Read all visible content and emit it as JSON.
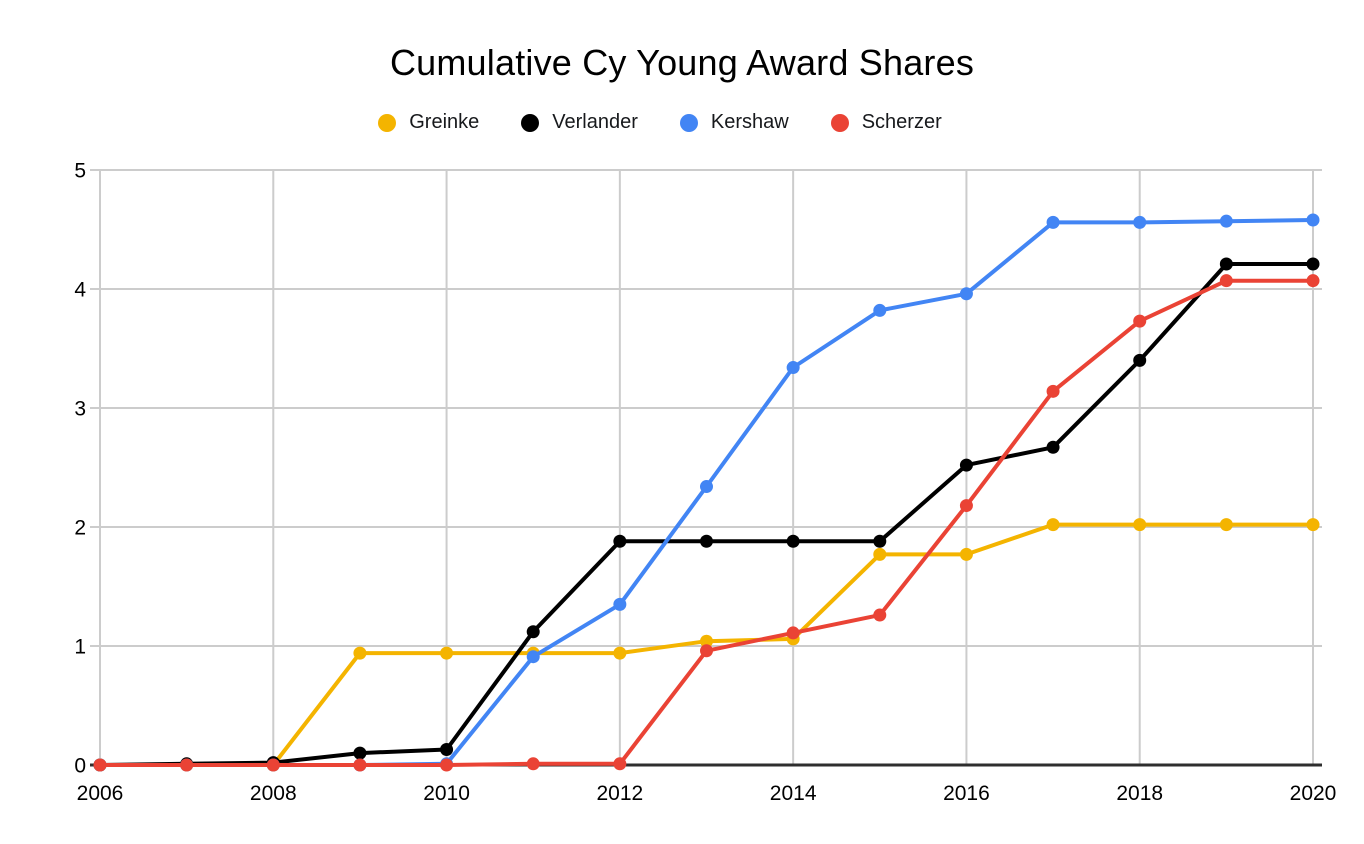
{
  "chart_data": {
    "type": "line",
    "title": "Cumulative Cy Young Award Shares",
    "xlabel": "",
    "ylabel": "",
    "years": [
      2006,
      2007,
      2008,
      2009,
      2010,
      2011,
      2012,
      2013,
      2014,
      2015,
      2016,
      2017,
      2018,
      2019,
      2020
    ],
    "x_ticks": [
      2006,
      2008,
      2010,
      2012,
      2014,
      2016,
      2018,
      2020
    ],
    "y_ticks": [
      0,
      1,
      2,
      3,
      4,
      5
    ],
    "ylim": [
      0,
      5
    ],
    "grid": true,
    "legend_position": "top",
    "series": [
      {
        "name": "Greinke",
        "color": "#F4B400",
        "values": [
          0,
          0,
          0,
          0.94,
          0.94,
          0.94,
          0.94,
          1.04,
          1.06,
          1.77,
          1.77,
          2.02,
          2.02,
          2.02,
          2.02
        ]
      },
      {
        "name": "Verlander",
        "color": "#000000",
        "values": [
          0,
          0.01,
          0.02,
          0.1,
          0.13,
          1.12,
          1.88,
          1.88,
          1.88,
          1.88,
          2.52,
          2.67,
          3.4,
          4.21,
          4.21
        ]
      },
      {
        "name": "Kershaw",
        "color": "#4285F4",
        "values": [
          0,
          0,
          0,
          0,
          0.01,
          0.91,
          1.35,
          2.34,
          3.34,
          3.82,
          3.96,
          4.56,
          4.56,
          4.57,
          4.58
        ]
      },
      {
        "name": "Scherzer",
        "color": "#EA4335",
        "values": [
          0,
          0,
          0,
          0,
          0,
          0.01,
          0.01,
          0.96,
          1.11,
          1.26,
          2.18,
          3.14,
          3.73,
          4.07,
          4.07
        ]
      }
    ],
    "colors": {
      "grid": "#CCCCCC",
      "axis_baseline": "#2E2E2E",
      "tick_text": "#000000"
    }
  }
}
